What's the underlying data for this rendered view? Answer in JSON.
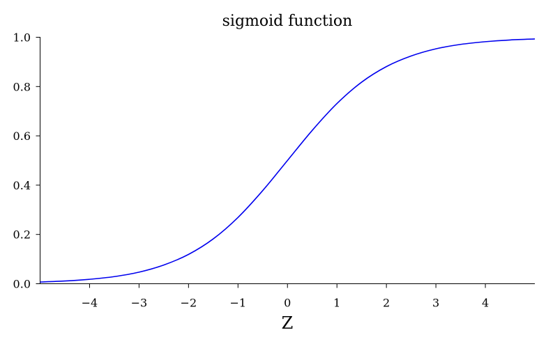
{
  "chart_data": {
    "type": "line",
    "title": "sigmoid function",
    "xlabel": "Z",
    "ylabel": "",
    "xlim": [
      -5,
      5
    ],
    "ylim": [
      0,
      1
    ],
    "grid": false,
    "legend": "none",
    "line_color": "#0000ee",
    "x_ticks": [
      -4,
      -3,
      -2,
      -1,
      0,
      1,
      2,
      3,
      4
    ],
    "x_tick_labels": [
      "−4",
      "−3",
      "−2",
      "−1",
      "0",
      "1",
      "2",
      "3",
      "4"
    ],
    "y_ticks": [
      0,
      0.2,
      0.4,
      0.6,
      0.8,
      1.0
    ],
    "y_tick_labels": [
      "0.0",
      "0.2",
      "0.4",
      "0.6",
      "0.8",
      "1.0"
    ],
    "series": [
      {
        "x": [
          -5,
          -4.5,
          -4,
          -3.5,
          -3,
          -2.5,
          -2,
          -1.5,
          -1,
          -0.5,
          0,
          0.5,
          1,
          1.5,
          2,
          2.5,
          3,
          3.5,
          4,
          4.5,
          5
        ],
        "values": [
          0.007,
          0.011,
          0.018,
          0.029,
          0.047,
          0.076,
          0.119,
          0.182,
          0.269,
          0.378,
          0.5,
          0.622,
          0.731,
          0.818,
          0.881,
          0.924,
          0.953,
          0.971,
          0.982,
          0.989,
          0.993
        ]
      }
    ]
  }
}
